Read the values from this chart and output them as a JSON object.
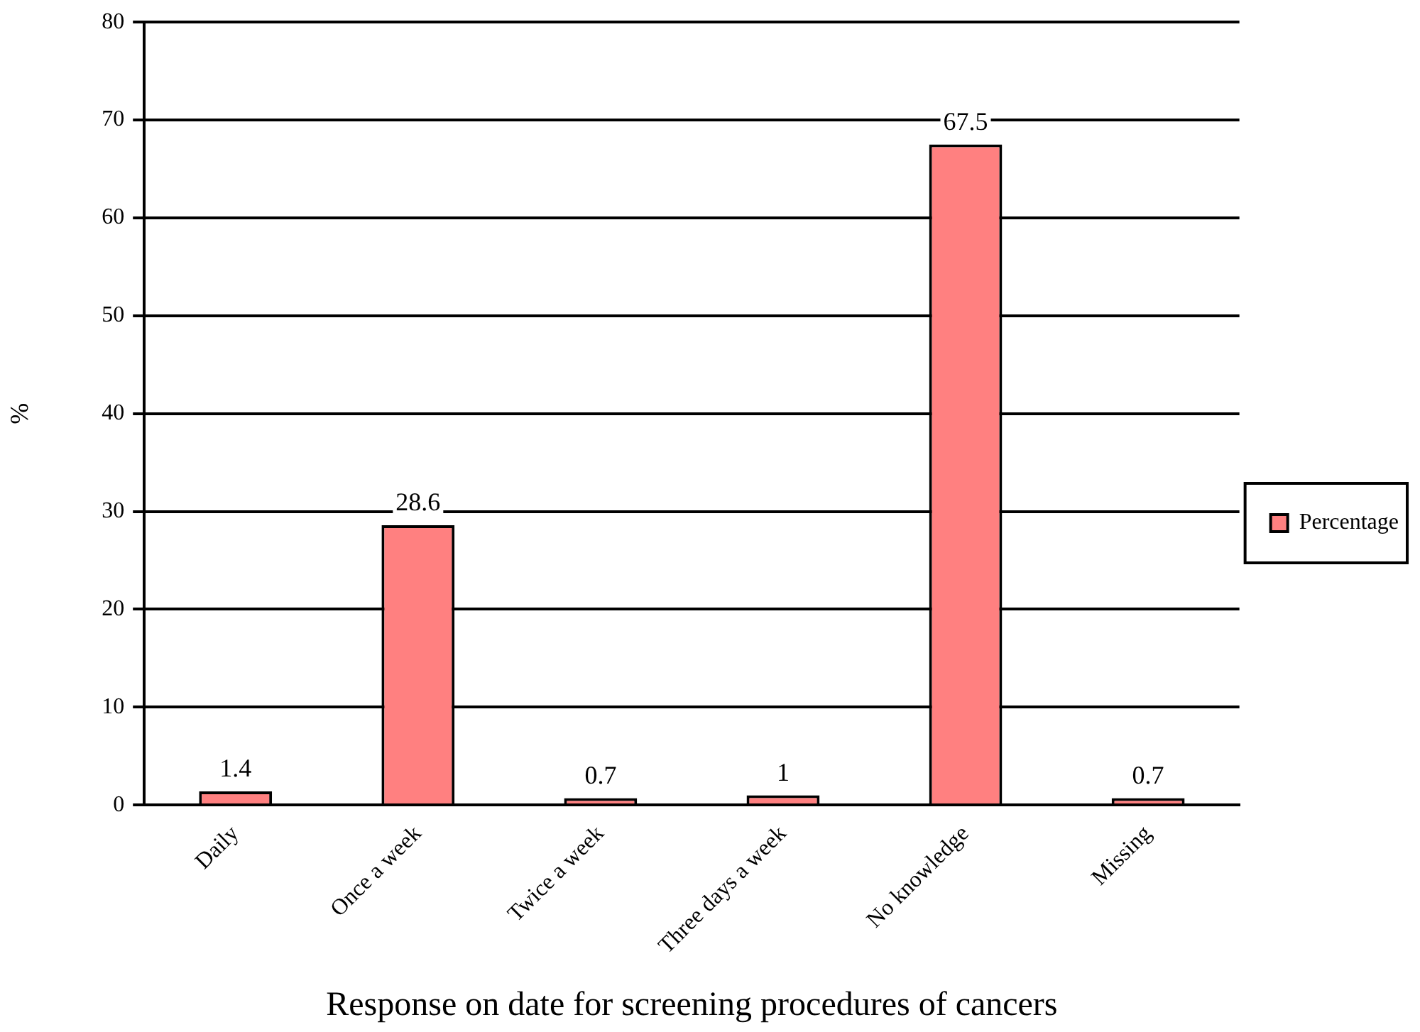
{
  "chart_data": {
    "type": "bar",
    "xlabel": "Response on date for screening procedures of cancers",
    "ylabel": "%",
    "categories": [
      "Daily",
      "Once a week",
      "Twice a week",
      "Three days a week",
      "No knowledge",
      "Missing"
    ],
    "series": [
      {
        "name": "Percentage",
        "color": "#ff8080",
        "values": [
          1.4,
          28.6,
          0.7,
          1,
          67.5,
          0.7
        ]
      }
    ],
    "ylim": [
      0,
      80
    ],
    "yticks": [
      0,
      10,
      20,
      30,
      40,
      50,
      60,
      70,
      80
    ],
    "grid": "y",
    "legend": "right",
    "data_labels": true
  }
}
